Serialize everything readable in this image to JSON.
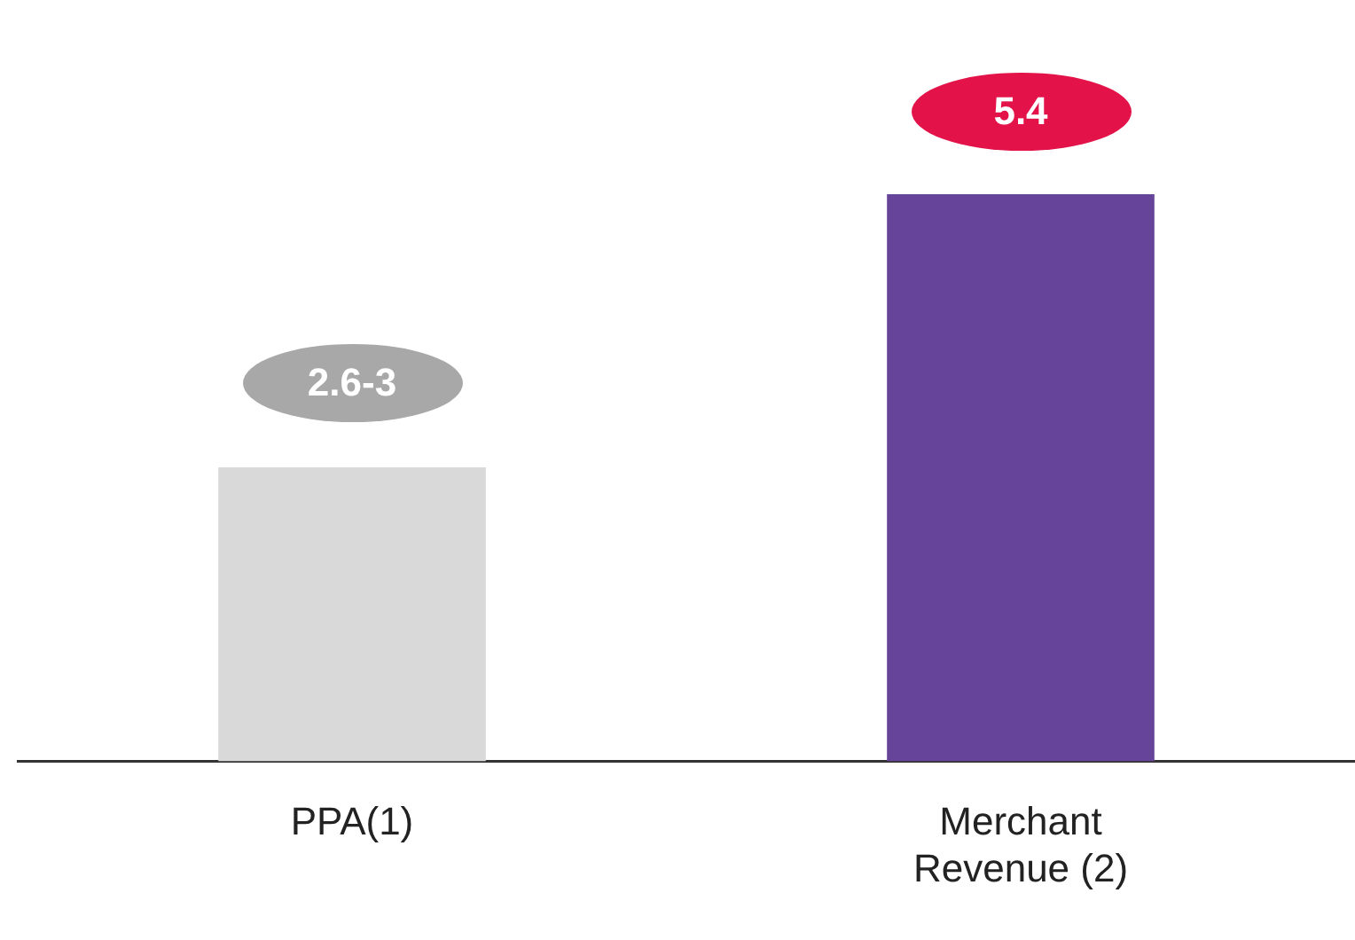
{
  "chart_data": {
    "type": "bar",
    "categories": [
      "PPA(1)",
      "Merchant Revenue (2)"
    ],
    "values": [
      2.8,
      5.4
    ],
    "colors": [
      "#d9d9d9",
      "#66449a"
    ],
    "value_labels": [
      "2.6-3",
      "5.4"
    ],
    "tick_labels": "x",
    "grid": false,
    "legend": false
  }
}
